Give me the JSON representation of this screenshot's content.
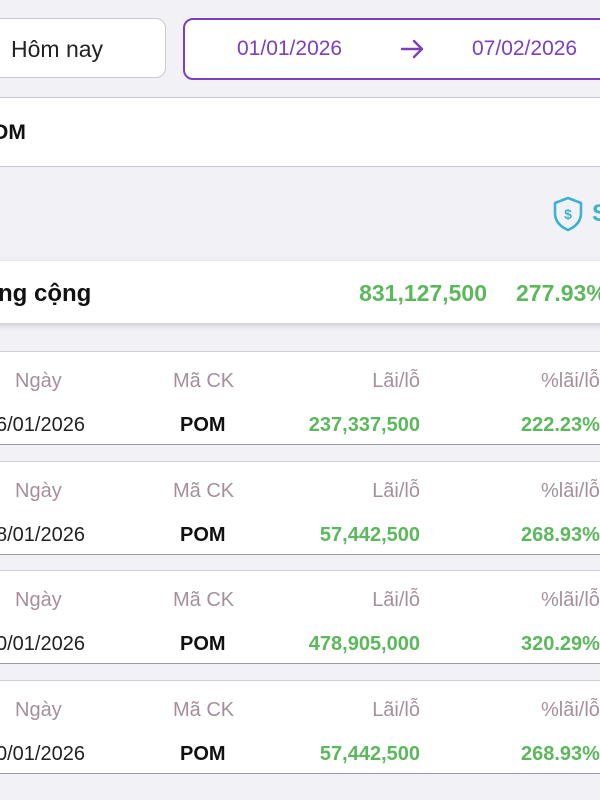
{
  "filter": {
    "period_label": "Hôm nay",
    "date_from": "01/01/2026",
    "date_to": "07/02/2026",
    "accent_color": "#7b3fc0"
  },
  "symbol": {
    "text": "OM"
  },
  "shield": {
    "icon": "shield-dollar-icon",
    "text": "S",
    "color": "#3ab3cf"
  },
  "total": {
    "label": "ng cộng",
    "profit": "831,127,500",
    "percent": "277.93%",
    "positive_color": "#5cb85c"
  },
  "columns": {
    "date": "Ngày",
    "symbol": "Mã CK",
    "profit": "Lãi/lỗ",
    "percent": "%lãi/lỗ"
  },
  "transactions": [
    {
      "date": "6/01/2026",
      "symbol": "POM",
      "profit": "237,337,500",
      "percent": "222.23%"
    },
    {
      "date": "8/01/2026",
      "symbol": "POM",
      "profit": "57,442,500",
      "percent": "268.93%"
    },
    {
      "date": "0/01/2026",
      "symbol": "POM",
      "profit": "478,905,000",
      "percent": "320.29%"
    },
    {
      "date": "0/01/2026",
      "symbol": "POM",
      "profit": "57,442,500",
      "percent": "268.93%"
    }
  ]
}
